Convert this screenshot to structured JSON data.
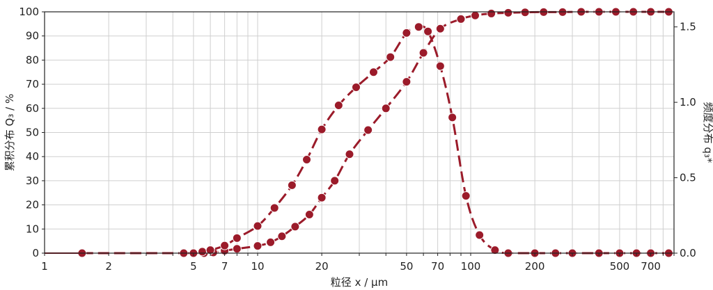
{
  "chart_data": {
    "type": "line",
    "xlabel": "粒径 x / μm",
    "ylabel_left": "累积分布 Q₃ / %",
    "ylabel_right": "频度分布 q₃*",
    "x_scale": "log",
    "xlim": [
      1,
      900
    ],
    "ylim_left": [
      0,
      100
    ],
    "ylim_right": [
      0,
      1.6
    ],
    "x_tick_labels": [
      {
        "value": 1,
        "label": "1"
      },
      {
        "value": 2,
        "label": "2"
      },
      {
        "value": 5,
        "label": "5"
      },
      {
        "value": 7,
        "label": "7"
      },
      {
        "value": 10,
        "label": "10"
      },
      {
        "value": 20,
        "label": "20"
      },
      {
        "value": 50,
        "label": "50"
      },
      {
        "value": 70,
        "label": "70"
      },
      {
        "value": 100,
        "label": "100"
      },
      {
        "value": 200,
        "label": "200"
      },
      {
        "value": 500,
        "label": "500"
      },
      {
        "value": 700,
        "label": "700"
      }
    ],
    "y_left_ticks": [
      0,
      10,
      20,
      30,
      40,
      50,
      60,
      70,
      80,
      90,
      100
    ],
    "y_right_ticks": [
      {
        "value": 0,
        "label": "0.0"
      },
      {
        "value": 0.5,
        "label": "0.5"
      },
      {
        "value": 1.0,
        "label": "1.0"
      },
      {
        "value": 1.5,
        "label": "1.5"
      }
    ],
    "grid": true,
    "colors": {
      "series": "#9b1b2a",
      "grid": "#cfcfcf",
      "axis": "#222222"
    },
    "series": [
      {
        "axis": "left",
        "line_style": "dashed",
        "x": [
          1.5,
          4.5,
          5,
          5.6,
          6.2,
          7,
          8,
          10,
          11.5,
          13,
          15,
          17.5,
          20,
          23,
          27,
          33,
          40,
          50,
          60,
          72,
          90,
          105,
          125,
          150,
          180,
          220,
          270,
          330,
          400,
          480,
          580,
          700,
          850
        ],
        "y": [
          0,
          0,
          0,
          0,
          0.3,
          1,
          1.8,
          3,
          4.5,
          7,
          11,
          16,
          23,
          30,
          41,
          51,
          60,
          71,
          83,
          93,
          97,
          98.5,
          99.3,
          99.6,
          99.8,
          99.9,
          99.9,
          100,
          100,
          100,
          100,
          100,
          100
        ]
      },
      {
        "axis": "right",
        "line_style": "dashed",
        "x": [
          4.5,
          5,
          5.5,
          6,
          7,
          8,
          10,
          12,
          14.5,
          17,
          20,
          24,
          29,
          35,
          42,
          50,
          57,
          63,
          72,
          82,
          95,
          110,
          130,
          150,
          200,
          250,
          300,
          400,
          500,
          600,
          700,
          850
        ],
        "y": [
          0.0,
          0.0,
          0.01,
          0.02,
          0.05,
          0.1,
          0.18,
          0.3,
          0.45,
          0.62,
          0.82,
          0.98,
          1.1,
          1.2,
          1.3,
          1.46,
          1.5,
          1.47,
          1.24,
          0.9,
          0.38,
          0.12,
          0.02,
          0.0,
          0.0,
          0.0,
          0.0,
          0.0,
          0.0,
          0.0,
          0.0,
          0.0
        ]
      }
    ]
  }
}
